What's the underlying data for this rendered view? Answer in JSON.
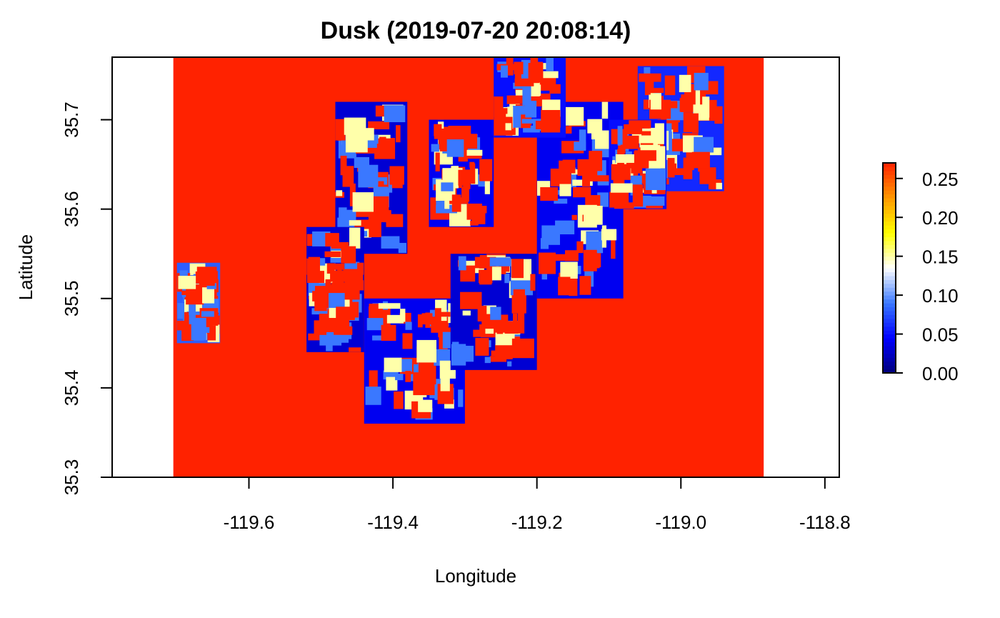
{
  "chart_data": {
    "type": "heatmap",
    "title": "Dusk (2019-07-20 20:08:14)",
    "xlabel": "Longitude",
    "ylabel": "Latitude",
    "xlim": [
      -119.79,
      -118.78
    ],
    "ylim": [
      35.3,
      35.77
    ],
    "xticks": [
      -119.6,
      -119.4,
      -119.2,
      -119.0,
      -118.8
    ],
    "xtick_labels": [
      "-119.6",
      "-119.4",
      "-119.2",
      "-119.0",
      "-118.8"
    ],
    "yticks": [
      35.3,
      35.4,
      35.5,
      35.6,
      35.7
    ],
    "ytick_labels": [
      "35.3",
      "35.4",
      "35.5",
      "35.6",
      "35.7"
    ],
    "data_extent": {
      "lon": [
        -119.705,
        -118.885
      ],
      "lat": [
        35.3,
        35.77
      ]
    },
    "colorbar": {
      "range": [
        0.0,
        0.27
      ],
      "ticks": [
        0.0,
        0.05,
        0.1,
        0.15,
        0.2,
        0.25
      ],
      "tick_labels": [
        "0.00",
        "0.05",
        "0.10",
        "0.15",
        "0.20",
        "0.25"
      ],
      "colors": [
        "#00007a",
        "#0000ff",
        "#3a78ff",
        "#ffffff",
        "#ffff00",
        "#ff9900",
        "#ff2200"
      ]
    },
    "background_color": "#ff2200",
    "low_value_regions": [
      {
        "lon": [
          -119.48,
          -119.38
        ],
        "lat": [
          35.55,
          35.72
        ],
        "value": 0.03
      },
      {
        "lon": [
          -119.44,
          -119.3
        ],
        "lat": [
          35.36,
          35.5
        ],
        "value": 0.04
      },
      {
        "lon": [
          -119.32,
          -119.2
        ],
        "lat": [
          35.42,
          35.55
        ],
        "value": 0.03
      },
      {
        "lon": [
          -119.2,
          -119.08
        ],
        "lat": [
          35.5,
          35.72
        ],
        "value": 0.04
      },
      {
        "lon": [
          -119.06,
          -118.94
        ],
        "lat": [
          35.62,
          35.76
        ],
        "value": 0.06
      },
      {
        "lon": [
          -119.7,
          -119.64
        ],
        "lat": [
          35.45,
          35.54
        ],
        "value": 0.08
      },
      {
        "lon": [
          -119.35,
          -119.26
        ],
        "lat": [
          35.58,
          35.7
        ],
        "value": 0.04
      },
      {
        "lon": [
          -119.52,
          -119.44
        ],
        "lat": [
          35.44,
          35.58
        ],
        "value": 0.03
      },
      {
        "lon": [
          -119.1,
          -119.02
        ],
        "lat": [
          35.6,
          35.7
        ],
        "value": 0.05
      },
      {
        "lon": [
          -119.26,
          -119.16
        ],
        "lat": [
          35.68,
          35.77
        ],
        "value": 0.05
      }
    ]
  }
}
